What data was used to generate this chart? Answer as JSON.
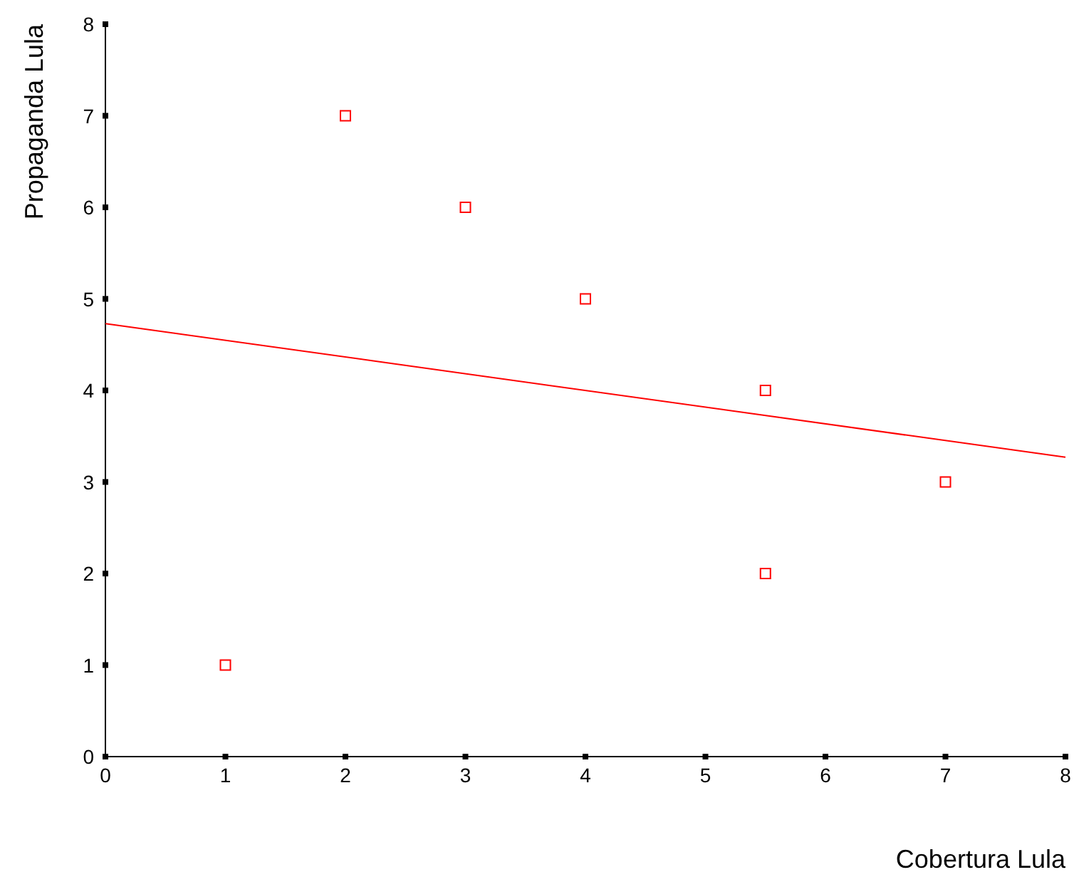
{
  "chart_data": {
    "type": "scatter",
    "xlabel": "Cobertura Lula",
    "ylabel": "Propaganda Lula",
    "xlim": [
      0,
      8
    ],
    "ylim": [
      0,
      8
    ],
    "xticks": [
      0,
      1,
      2,
      3,
      4,
      5,
      6,
      7,
      8
    ],
    "yticks": [
      0,
      1,
      2,
      3,
      4,
      5,
      6,
      7,
      8
    ],
    "grid": false,
    "series": [
      {
        "color": "#ff0000",
        "marker": "square",
        "x": [
          1,
          2,
          3,
          4,
          5.5,
          5.5,
          7
        ],
        "values": [
          1,
          7,
          6,
          5,
          4,
          2,
          3
        ]
      },
      {
        "type": "line",
        "color": "#ff0000",
        "x": [
          0,
          8
        ],
        "values": [
          4.73,
          3.27
        ]
      }
    ]
  }
}
